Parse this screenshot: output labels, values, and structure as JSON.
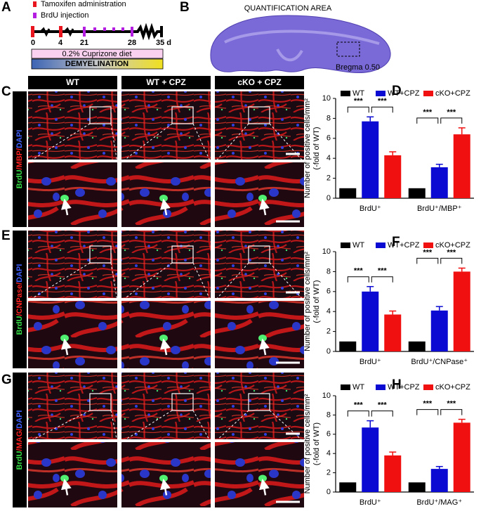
{
  "panel_labels": [
    "A",
    "B",
    "C",
    "D",
    "E",
    "F",
    "G",
    "H"
  ],
  "timeline": {
    "legend": [
      "Tamoxifen administration",
      "BrdU injection"
    ],
    "days": [
      "0",
      "4",
      "21",
      "28",
      "35 d"
    ],
    "diet": "0.2%  Cuprizone diet",
    "phase": "DEMYELINATION"
  },
  "brain": {
    "title": "QUANTIFICATION AREA",
    "bregma": "Bregma 0.50"
  },
  "columns": [
    "WT",
    "WT + CPZ",
    "cKO + CPZ"
  ],
  "stains": [
    [
      "BrdU",
      "/MBP/",
      "DAPI"
    ],
    [
      "BrdU",
      "/CNPase/",
      "DAPI"
    ],
    [
      "BrdU",
      "/MAG/",
      "DAPI"
    ]
  ],
  "chart_data": [
    {
      "type": "bar",
      "ylabel": [
        "Number of positive cells/mm²",
        "(-fold of WT)"
      ],
      "categories": [
        "BrdU⁺",
        "BrdU⁺/MBP⁺"
      ],
      "series": [
        {
          "name": "WT",
          "color": "#000000",
          "values": [
            1,
            1
          ]
        },
        {
          "name": "WT+CPZ",
          "color": "#0a0ad2",
          "values": [
            7.7,
            3.1
          ],
          "errors": [
            0.45,
            0.3
          ]
        },
        {
          "name": "cKO+CPZ",
          "color": "#f01010",
          "values": [
            4.3,
            6.4
          ],
          "errors": [
            0.35,
            0.65
          ]
        }
      ],
      "ylim": [
        0,
        10
      ],
      "yticks": [
        0,
        2,
        4,
        6,
        8,
        10
      ],
      "annotations": [
        "***",
        "***",
        "***",
        "***"
      ]
    },
    {
      "type": "bar",
      "ylabel": [
        "Number of positive cells/mm²",
        "(-fold of WT)"
      ],
      "categories": [
        "BrdU⁺",
        "BrdU⁺/CNPase⁺"
      ],
      "series": [
        {
          "name": "WT",
          "color": "#000000",
          "values": [
            1,
            1
          ]
        },
        {
          "name": "WT+CPZ",
          "color": "#0a0ad2",
          "values": [
            6.0,
            4.1
          ],
          "errors": [
            0.5,
            0.4
          ]
        },
        {
          "name": "cKO+CPZ",
          "color": "#f01010",
          "values": [
            3.7,
            8.0
          ],
          "errors": [
            0.35,
            0.35
          ]
        }
      ],
      "ylim": [
        0,
        10
      ],
      "yticks": [
        0,
        2,
        4,
        6,
        8,
        10
      ],
      "annotations": [
        "***",
        "***",
        "***",
        "***"
      ]
    },
    {
      "type": "bar",
      "ylabel": [
        "Number of positive cells/mm²",
        "(-fold of WT)"
      ],
      "categories": [
        "BrdU⁺",
        "BrdU⁺/MAG⁺"
      ],
      "series": [
        {
          "name": "WT",
          "color": "#000000",
          "values": [
            1,
            1
          ]
        },
        {
          "name": "WT+CPZ",
          "color": "#0a0ad2",
          "values": [
            6.7,
            2.4
          ],
          "errors": [
            0.7,
            0.25
          ]
        },
        {
          "name": "cKO+CPZ",
          "color": "#f01010",
          "values": [
            3.8,
            7.2
          ],
          "errors": [
            0.35,
            0.35
          ]
        }
      ],
      "ylim": [
        0,
        10
      ],
      "yticks": [
        0,
        2,
        4,
        6,
        8,
        10
      ],
      "annotations": [
        "***",
        "***",
        "***",
        "***"
      ]
    }
  ]
}
